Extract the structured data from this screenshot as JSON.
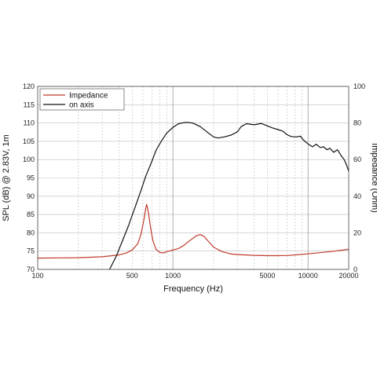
{
  "chart_data": {
    "type": "line",
    "title": "",
    "xlabel": "Frequency (Hz)",
    "ylabel": "SPL (dB) @ 2.83V, 1m",
    "y2label": "Impedance (Ohm)",
    "xscale": "log",
    "xlim": [
      100,
      20000
    ],
    "ylim": [
      70,
      120
    ],
    "y2lim": [
      0,
      100
    ],
    "grid": true,
    "legend_position": "top-left",
    "x_ticks": [
      {
        "value": 100,
        "label": "100"
      },
      {
        "value": 500,
        "label": "500"
      },
      {
        "value": 1000,
        "label": "1000"
      },
      {
        "value": 5000,
        "label": "5000"
      },
      {
        "value": 10000,
        "label": "10000"
      },
      {
        "value": 20000,
        "label": "20000"
      }
    ],
    "y_ticks": [
      {
        "value": 70,
        "label": "70"
      },
      {
        "value": 75,
        "label": "75"
      },
      {
        "value": 80,
        "label": "80"
      },
      {
        "value": 85,
        "label": "85"
      },
      {
        "value": 90,
        "label": "90"
      },
      {
        "value": 95,
        "label": "95"
      },
      {
        "value": 100,
        "label": "100"
      },
      {
        "value": 105,
        "label": "105"
      },
      {
        "value": 110,
        "label": "110"
      },
      {
        "value": 115,
        "label": "115"
      },
      {
        "value": 120,
        "label": "120"
      }
    ],
    "y2_ticks": [
      {
        "value": 0,
        "label": "0"
      },
      {
        "value": 20,
        "label": "20"
      },
      {
        "value": 40,
        "label": "40"
      },
      {
        "value": 60,
        "label": "60"
      },
      {
        "value": 80,
        "label": "80"
      },
      {
        "value": 100,
        "label": "100"
      }
    ],
    "series": [
      {
        "name": "Impedance",
        "axis": "right",
        "color": "#c0392b",
        "points": [
          [
            100,
            6.2
          ],
          [
            150,
            6.3
          ],
          [
            200,
            6.4
          ],
          [
            300,
            6.9
          ],
          [
            400,
            7.9
          ],
          [
            450,
            8.9
          ],
          [
            500,
            10.6
          ],
          [
            550,
            14.0
          ],
          [
            580,
            19.0
          ],
          [
            610,
            27.0
          ],
          [
            630,
            33.5
          ],
          [
            640,
            35.5
          ],
          [
            660,
            31.0
          ],
          [
            680,
            24.0
          ],
          [
            710,
            16.0
          ],
          [
            750,
            11.0
          ],
          [
            800,
            9.3
          ],
          [
            850,
            9.0
          ],
          [
            900,
            9.6
          ],
          [
            1000,
            10.6
          ],
          [
            1100,
            11.4
          ],
          [
            1200,
            13.0
          ],
          [
            1350,
            16.0
          ],
          [
            1500,
            18.5
          ],
          [
            1600,
            19.0
          ],
          [
            1700,
            18.0
          ],
          [
            1850,
            15.0
          ],
          [
            2000,
            12.2
          ],
          [
            2300,
            9.8
          ],
          [
            2700,
            8.4
          ],
          [
            3000,
            8.1
          ],
          [
            4000,
            7.7
          ],
          [
            5000,
            7.5
          ],
          [
            6000,
            7.5
          ],
          [
            7000,
            7.6
          ],
          [
            8000,
            7.9
          ],
          [
            10000,
            8.5
          ],
          [
            12000,
            9.1
          ],
          [
            15000,
            9.8
          ],
          [
            20000,
            11.0
          ]
        ]
      },
      {
        "name": "on axis",
        "axis": "left",
        "color": "#111111",
        "points": [
          [
            340,
            70.0
          ],
          [
            380,
            73.5
          ],
          [
            420,
            77.5
          ],
          [
            470,
            82.0
          ],
          [
            520,
            86.5
          ],
          [
            580,
            91.5
          ],
          [
            630,
            95.5
          ],
          [
            690,
            99.0
          ],
          [
            750,
            102.5
          ],
          [
            820,
            105.0
          ],
          [
            900,
            107.2
          ],
          [
            1000,
            108.8
          ],
          [
            1100,
            109.8
          ],
          [
            1250,
            110.2
          ],
          [
            1400,
            110.0
          ],
          [
            1600,
            109.0
          ],
          [
            1800,
            107.5
          ],
          [
            2000,
            106.2
          ],
          [
            2150,
            105.9
          ],
          [
            2400,
            106.2
          ],
          [
            2700,
            106.7
          ],
          [
            3000,
            107.6
          ],
          [
            3200,
            109.0
          ],
          [
            3500,
            109.8
          ],
          [
            4000,
            109.5
          ],
          [
            4500,
            109.9
          ],
          [
            5000,
            109.2
          ],
          [
            5500,
            108.6
          ],
          [
            6000,
            108.2
          ],
          [
            6500,
            107.8
          ],
          [
            7000,
            106.8
          ],
          [
            7500,
            106.3
          ],
          [
            8200,
            106.2
          ],
          [
            8800,
            106.4
          ],
          [
            9200,
            105.4
          ],
          [
            10000,
            104.3
          ],
          [
            10800,
            103.5
          ],
          [
            11500,
            104.2
          ],
          [
            12300,
            103.3
          ],
          [
            13000,
            103.5
          ],
          [
            13800,
            102.7
          ],
          [
            14500,
            103.1
          ],
          [
            15500,
            102.0
          ],
          [
            16500,
            102.7
          ],
          [
            17500,
            101.2
          ],
          [
            18500,
            100.0
          ],
          [
            19300,
            98.5
          ],
          [
            20000,
            96.8
          ]
        ]
      }
    ]
  }
}
